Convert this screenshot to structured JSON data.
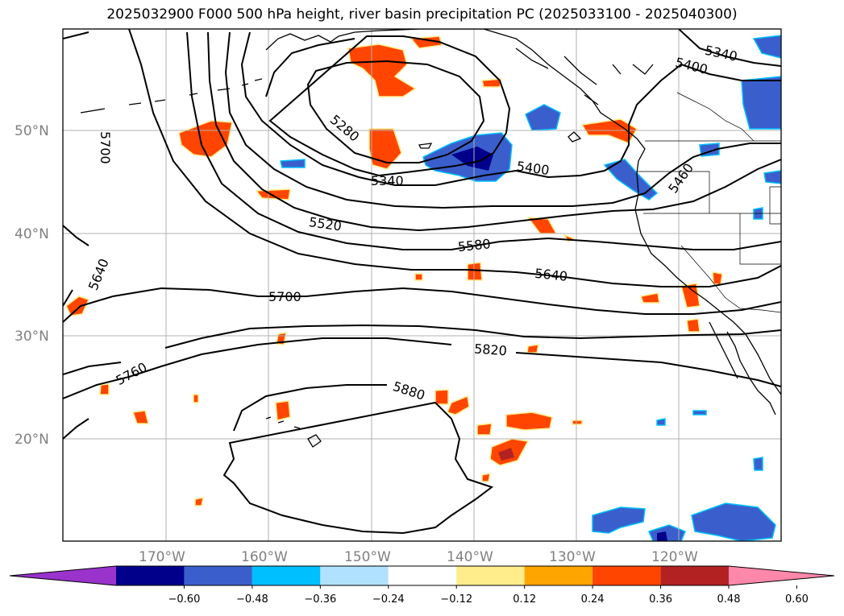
{
  "title": "2025032900 F000 500 hPa height, river basin precipitation PC (2025033100 - 2025040300)",
  "latitude_labels": [
    "50°N",
    "40°N",
    "30°N",
    "20°N"
  ],
  "longitude_labels": [
    "170°W",
    "160°W",
    "150°W",
    "140°W",
    "130°W",
    "120°W"
  ],
  "contour_labels": [
    "5280",
    "5340",
    "5340",
    "5400",
    "5400",
    "5460",
    "5520",
    "5580",
    "5640",
    "5640",
    "5700",
    "5700",
    "5760",
    "5820",
    "5880"
  ],
  "colorbar": {
    "ticks": [
      "−0.60",
      "−0.48",
      "−0.36",
      "−0.24",
      "−0.12",
      "0.12",
      "0.24",
      "0.36",
      "0.48",
      "0.60"
    ],
    "colors": [
      "#9933cc",
      "#00008b",
      "#3a5fcd",
      "#00bfff",
      "#b0e2ff",
      "#ffffff",
      "#ffec8b",
      "#ffa500",
      "#ff4500",
      "#b22222",
      "#ff88aa"
    ]
  },
  "colors": {
    "positive_strong": "#ff4500",
    "positive_edge": "#ffec8b",
    "negative": "#3a5fcd",
    "negative_edge": "#00bfff",
    "negative_core": "#00008b",
    "gridline": "#b0b0b0",
    "contour": "#000000",
    "label_gray": "#808080"
  }
}
